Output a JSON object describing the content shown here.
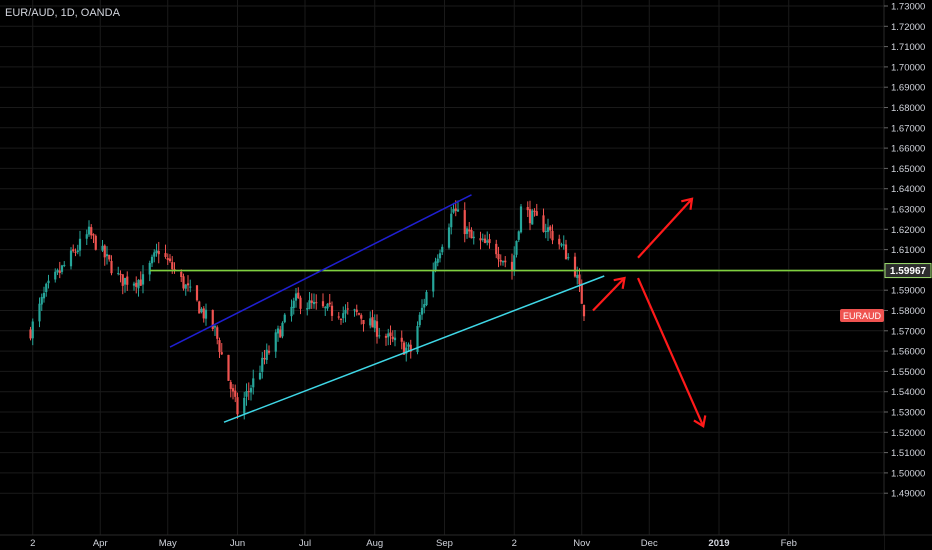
{
  "header": {
    "symbol_label": "EUR/AUD, 1D, OANDA"
  },
  "colors": {
    "background": "#000000",
    "up_candle": "#26a69a",
    "down_candle": "#ef5350",
    "grid": "#1a1a1a",
    "axis_text": "#d1d4dc",
    "channel_upper": "#1f1fd0",
    "channel_lower": "#3fd7e6",
    "horizontal_level": "#7fcf3f",
    "arrows": "#ff1a1a",
    "level_badge": "#2d2d2d",
    "symbol_badge": "#ef5350"
  },
  "price_axis": {
    "ticks": [
      "1.73000",
      "1.72000",
      "1.71000",
      "1.70000",
      "1.69000",
      "1.68000",
      "1.67000",
      "1.66000",
      "1.65000",
      "1.64000",
      "1.63000",
      "1.62000",
      "1.61000",
      "1.60000",
      "1.59000",
      "1.58000",
      "1.57000",
      "1.56000",
      "1.55000",
      "1.54000",
      "1.53000",
      "1.52000",
      "1.51000",
      "1.50000",
      "1.49000"
    ],
    "level_label": "1.59967",
    "symbol_badge_label": "EURAUD"
  },
  "time_axis": {
    "labels": [
      "2",
      "Apr",
      "May",
      "Jun",
      "Jul",
      "Aug",
      "Sep",
      "2",
      "Nov",
      "Dec",
      "2019",
      "Feb"
    ]
  },
  "chart_data": {
    "type": "candlestick",
    "symbol": "EUR/AUD",
    "interval": "1D",
    "source": "OANDA",
    "y_scale": "linear",
    "ylim": [
      1.4856,
      1.7355
    ],
    "grid": true,
    "horizontal_level": 1.59967,
    "key_closes": [
      {
        "date": "2018-03-01",
        "close": 1.57
      },
      {
        "date": "2018-03-08",
        "close": 1.59
      },
      {
        "date": "2018-03-20",
        "close": 1.608
      },
      {
        "date": "2018-03-27",
        "close": 1.618
      },
      {
        "date": "2018-04-10",
        "close": 1.595
      },
      {
        "date": "2018-04-20",
        "close": 1.595
      },
      {
        "date": "2018-04-27",
        "close": 1.61
      },
      {
        "date": "2018-05-10",
        "close": 1.59
      },
      {
        "date": "2018-05-22",
        "close": 1.57
      },
      {
        "date": "2018-06-01",
        "close": 1.53
      },
      {
        "date": "2018-06-15",
        "close": 1.56
      },
      {
        "date": "2018-06-27",
        "close": 1.585
      },
      {
        "date": "2018-07-10",
        "close": 1.58
      },
      {
        "date": "2018-07-25",
        "close": 1.578
      },
      {
        "date": "2018-08-08",
        "close": 1.565
      },
      {
        "date": "2018-08-17",
        "close": 1.56
      },
      {
        "date": "2018-08-28",
        "close": 1.605
      },
      {
        "date": "2018-09-05",
        "close": 1.63
      },
      {
        "date": "2018-09-13",
        "close": 1.615
      },
      {
        "date": "2018-09-24",
        "close": 1.61
      },
      {
        "date": "2018-10-01",
        "close": 1.6
      },
      {
        "date": "2018-10-05",
        "close": 1.63
      },
      {
        "date": "2018-10-17",
        "close": 1.62
      },
      {
        "date": "2018-10-24",
        "close": 1.61
      },
      {
        "date": "2018-10-29",
        "close": 1.6
      },
      {
        "date": "2018-11-01",
        "close": 1.585
      },
      {
        "date": "2018-11-02",
        "close": 1.58
      }
    ],
    "drawings": {
      "channel_upper_line": {
        "from": {
          "date": "2018-05-02",
          "price": 1.562
        },
        "to": {
          "date": "2018-09-13",
          "price": 1.637
        }
      },
      "channel_lower_line": {
        "from": {
          "date": "2018-05-26",
          "price": 1.525
        },
        "to": {
          "date": "2018-11-11",
          "price": 1.597
        }
      },
      "arrows": [
        {
          "from": {
            "date": "2018-11-06",
            "price": 1.58
          },
          "to": {
            "date": "2018-11-20",
            "price": 1.596
          }
        },
        {
          "from": {
            "date": "2018-11-26",
            "price": 1.606
          },
          "to": {
            "date": "2018-12-20",
            "price": 1.635
          }
        },
        {
          "from": {
            "date": "2018-11-26",
            "price": 1.596
          },
          "to": {
            "date": "2018-12-25",
            "price": 1.523
          }
        }
      ]
    }
  }
}
